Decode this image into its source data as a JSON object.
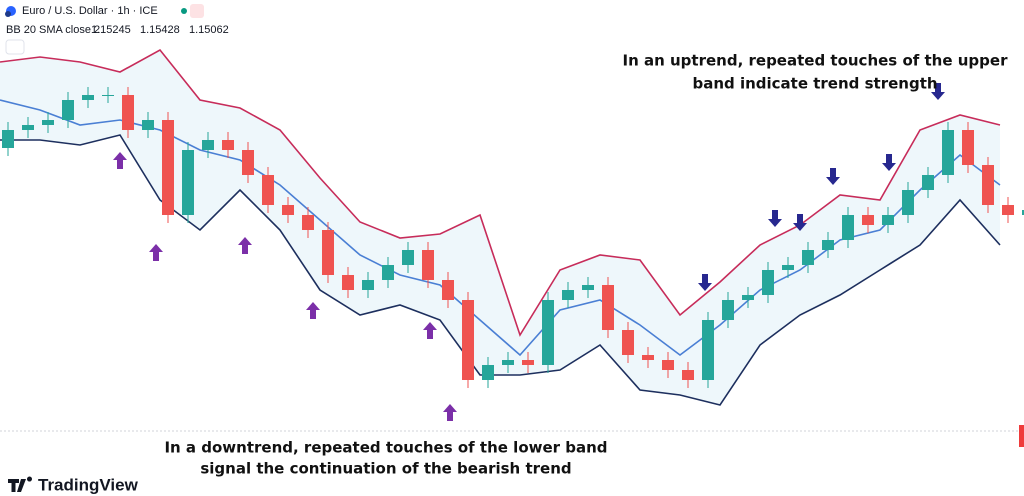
{
  "header": {
    "title": "Euro / U.S. Dollar · 1h · ICE",
    "indicator": "BB 20 SMA close 2",
    "indicator_values": [
      1.15245,
      1.15428,
      1.15062
    ]
  },
  "chart_data": {
    "type": "candlestick",
    "ylim": [
      1.1409,
      1.1604
    ],
    "candles": {
      "up_color": "#26a69a",
      "down_color": "#ef5350",
      "open": [
        1.155,
        1.1559,
        1.15615,
        1.1564,
        1.1574,
        1.15765,
        1.15765,
        1.1559,
        1.1564,
        1.15165,
        1.1549,
        1.1554,
        1.1549,
        1.15365,
        1.15215,
        1.15165,
        1.1509,
        1.14865,
        1.1479,
        1.1484,
        1.14915,
        1.1499,
        1.1484,
        1.1474,
        1.1434,
        1.14415,
        1.1444,
        1.14415,
        1.1474,
        1.1479,
        1.14815,
        1.1459,
        1.14465,
        1.1444,
        1.1439,
        1.1434,
        1.1464,
        1.1474,
        1.14765,
        1.1489,
        1.14915,
        1.1499,
        1.1504,
        1.15165,
        1.15115,
        1.15165,
        1.1529,
        1.15365,
        1.1559,
        1.15415,
        1.15215,
        1.15165
      ],
      "high": [
        1.1563,
        1.15655,
        1.1568,
        1.1578,
        1.15805,
        1.15805,
        1.15805,
        1.1568,
        1.1568,
        1.1553,
        1.1558,
        1.1558,
        1.1553,
        1.15405,
        1.15255,
        1.15205,
        1.1513,
        1.14905,
        1.1488,
        1.14955,
        1.1503,
        1.1503,
        1.1488,
        1.1478,
        1.14455,
        1.1448,
        1.1448,
        1.1478,
        1.1483,
        1.14855,
        1.14855,
        1.1463,
        1.14505,
        1.1448,
        1.1443,
        1.1468,
        1.1478,
        1.14805,
        1.1493,
        1.14955,
        1.1503,
        1.1508,
        1.15205,
        1.15205,
        1.15205,
        1.1533,
        1.15405,
        1.1563,
        1.1563,
        1.15455,
        1.15255,
        1.1523
      ],
      "low": [
        1.1546,
        1.1555,
        1.15575,
        1.156,
        1.157,
        1.15725,
        1.1555,
        1.1555,
        1.15125,
        1.15125,
        1.1545,
        1.1545,
        1.15325,
        1.15175,
        1.15125,
        1.1505,
        1.14825,
        1.1475,
        1.1475,
        1.148,
        1.14875,
        1.148,
        1.147,
        1.143,
        1.143,
        1.14375,
        1.14375,
        1.14375,
        1.147,
        1.1475,
        1.1455,
        1.14425,
        1.144,
        1.1435,
        1.143,
        1.143,
        1.146,
        1.147,
        1.14725,
        1.1485,
        1.14875,
        1.1495,
        1.15,
        1.15075,
        1.15075,
        1.15125,
        1.1525,
        1.15325,
        1.15375,
        1.15175,
        1.15125,
        1.15125
      ],
      "close": [
        1.1559,
        1.15615,
        1.1564,
        1.1574,
        1.15765,
        1.15765,
        1.1559,
        1.1564,
        1.15165,
        1.1549,
        1.1554,
        1.1549,
        1.15365,
        1.15215,
        1.15165,
        1.1509,
        1.14865,
        1.1479,
        1.1484,
        1.14915,
        1.1499,
        1.1484,
        1.1474,
        1.1434,
        1.14415,
        1.1444,
        1.14415,
        1.1474,
        1.1479,
        1.14815,
        1.1459,
        1.14465,
        1.1444,
        1.1439,
        1.1434,
        1.1464,
        1.1474,
        1.14765,
        1.1489,
        1.14915,
        1.1499,
        1.1504,
        1.15165,
        1.15115,
        1.15165,
        1.1529,
        1.15365,
        1.1559,
        1.15415,
        1.15215,
        1.15165,
        1.1519
      ]
    },
    "bands": {
      "fill_color": "#eef7fb",
      "upper": {
        "color": "#c72c5a",
        "values": [
          1.1593,
          1.15955,
          1.1593,
          1.1588,
          1.1599,
          1.1574,
          1.157,
          1.1559,
          1.1535,
          1.1513,
          1.1505,
          1.1507,
          1.15165,
          1.14565,
          1.1489,
          1.14965,
          1.1494,
          1.14665,
          1.1483,
          1.15015,
          1.15115,
          1.15265,
          1.1524,
          1.1559,
          1.15665,
          1.15615
        ]
      },
      "middle": {
        "color": "#4a7fd4",
        "values": [
          1.1574,
          1.1569,
          1.15615,
          1.1564,
          1.1559,
          1.1549,
          1.1544,
          1.15315,
          1.1514,
          1.14965,
          1.14865,
          1.14815,
          1.1464,
          1.14465,
          1.1469,
          1.1474,
          1.14615,
          1.14465,
          1.14615,
          1.1479,
          1.1489,
          1.1504,
          1.1509,
          1.1529,
          1.15465,
          1.15315
        ]
      },
      "lower": {
        "color": "#1d2f5e",
        "values": [
          1.1554,
          1.1554,
          1.15515,
          1.15565,
          1.1524,
          1.1509,
          1.1529,
          1.1509,
          1.1479,
          1.14665,
          1.14715,
          1.1464,
          1.14365,
          1.14365,
          1.1439,
          1.14515,
          1.1429,
          1.14265,
          1.14215,
          1.14515,
          1.14665,
          1.14765,
          1.1489,
          1.15015,
          1.1524,
          1.15015
        ]
      }
    }
  },
  "annotations": {
    "uptrend": [
      "In an uptrend, repeated touches of the upper",
      "band indicate trend strength"
    ],
    "downtrend": [
      "In a downtrend, repeated touches of the lower band",
      "signal the continuation of the bearish trend"
    ]
  },
  "footer": {
    "brand": "TradingView"
  }
}
